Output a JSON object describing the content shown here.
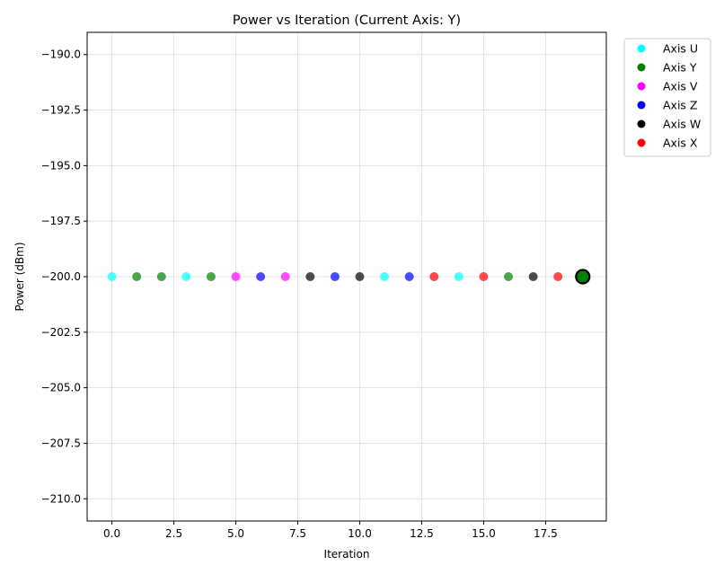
{
  "chart_data": {
    "type": "scatter",
    "title": "Power vs Iteration (Current Axis: Y)",
    "xlabel": "Iteration",
    "ylabel": "Power (dBm)",
    "xlim": [
      -1.0,
      19.95
    ],
    "ylim": [
      -211.0,
      -189.0
    ],
    "xticks": [
      0.0,
      2.5,
      5.0,
      7.5,
      10.0,
      12.5,
      15.0,
      17.5
    ],
    "xtick_labels": [
      "0.0",
      "2.5",
      "5.0",
      "7.5",
      "10.0",
      "12.5",
      "15.0",
      "17.5"
    ],
    "yticks": [
      -190.0,
      -192.5,
      -195.0,
      -197.5,
      -200.0,
      -202.5,
      -205.0,
      -207.5,
      -210.0
    ],
    "ytick_labels": [
      "−190.0",
      "−192.5",
      "−195.0",
      "−197.5",
      "−200.0",
      "−202.5",
      "−205.0",
      "−207.5",
      "−210.0"
    ],
    "grid": true,
    "legend_position": "outside-top-right",
    "axis_colors": {
      "U": "#00ffff",
      "Y": "#008000",
      "V": "#ff00ff",
      "Z": "#0000ff",
      "W": "#000000",
      "X": "#ff0000"
    },
    "legend": [
      {
        "label": "Axis U",
        "axis": "U"
      },
      {
        "label": "Axis Y",
        "axis": "Y"
      },
      {
        "label": "Axis V",
        "axis": "V"
      },
      {
        "label": "Axis Z",
        "axis": "Z"
      },
      {
        "label": "Axis W",
        "axis": "W"
      },
      {
        "label": "Axis X",
        "axis": "X"
      }
    ],
    "points": [
      {
        "x": 0,
        "y": -200.0,
        "axis": "U"
      },
      {
        "x": 1,
        "y": -200.0,
        "axis": "Y"
      },
      {
        "x": 2,
        "y": -200.0,
        "axis": "Y"
      },
      {
        "x": 3,
        "y": -200.0,
        "axis": "U"
      },
      {
        "x": 4,
        "y": -200.0,
        "axis": "Y"
      },
      {
        "x": 5,
        "y": -200.0,
        "axis": "V"
      },
      {
        "x": 6,
        "y": -200.0,
        "axis": "Z"
      },
      {
        "x": 7,
        "y": -200.0,
        "axis": "V"
      },
      {
        "x": 8,
        "y": -200.0,
        "axis": "W"
      },
      {
        "x": 9,
        "y": -200.0,
        "axis": "Z"
      },
      {
        "x": 10,
        "y": -200.0,
        "axis": "W"
      },
      {
        "x": 11,
        "y": -200.0,
        "axis": "U"
      },
      {
        "x": 12,
        "y": -200.0,
        "axis": "Z"
      },
      {
        "x": 13,
        "y": -200.0,
        "axis": "X"
      },
      {
        "x": 14,
        "y": -200.0,
        "axis": "U"
      },
      {
        "x": 15,
        "y": -200.0,
        "axis": "X"
      },
      {
        "x": 16,
        "y": -200.0,
        "axis": "Y"
      },
      {
        "x": 17,
        "y": -200.0,
        "axis": "W"
      },
      {
        "x": 18,
        "y": -200.0,
        "axis": "X"
      }
    ],
    "current_point": {
      "x": 19,
      "y": -200.0,
      "axis": "Y",
      "highlighted": true
    }
  }
}
